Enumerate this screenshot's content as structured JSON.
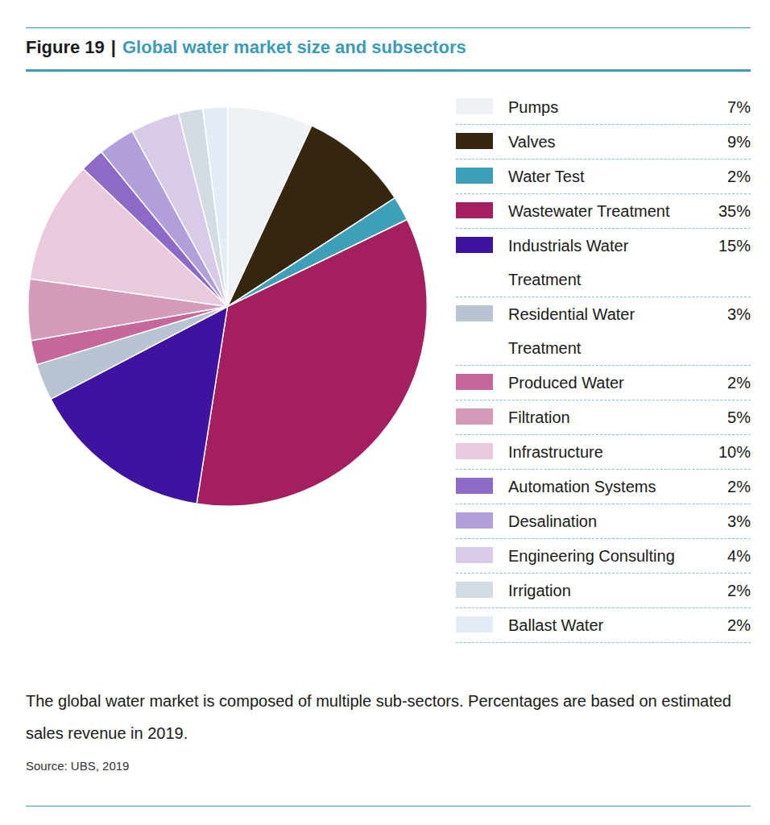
{
  "chart_data": {
    "type": "pie",
    "figure_label": "Figure 19",
    "title_separator": "|",
    "title": "Global water market size and subsectors",
    "categories": [
      "Pumps",
      "Valves",
      "Water Test",
      "Wastewater Treatment",
      "Industrials Water Treatment",
      "Residential Water Treatment",
      "Produced Water",
      "Filtration",
      "Infrastructure",
      "Automation Systems",
      "Desalination",
      "Engineering Consulting",
      "Irrigation",
      "Ballast Water"
    ],
    "values": [
      7,
      9,
      2,
      35,
      15,
      3,
      2,
      5,
      10,
      2,
      3,
      4,
      2,
      2
    ],
    "value_labels": [
      "7%",
      "9%",
      "2%",
      "35%",
      "15%",
      "3%",
      "2%",
      "5%",
      "10%",
      "2%",
      "3%",
      "4%",
      "2%",
      "2%"
    ],
    "colors": [
      "#eef2f6",
      "#35260f",
      "#3d9fb8",
      "#a31f60",
      "#3d13a0",
      "#b8c4d2",
      "#c5679a",
      "#d69ab9",
      "#eac9dc",
      "#8e6ac8",
      "#b09fdb",
      "#d8cbea",
      "#d4dce3",
      "#e3ebf4"
    ],
    "legend": "right",
    "caption": "The global water market is composed of multiple sub-sectors. Percentages are based on estimated sales revenue in 2019.",
    "source": "Source: UBS, 2019"
  }
}
